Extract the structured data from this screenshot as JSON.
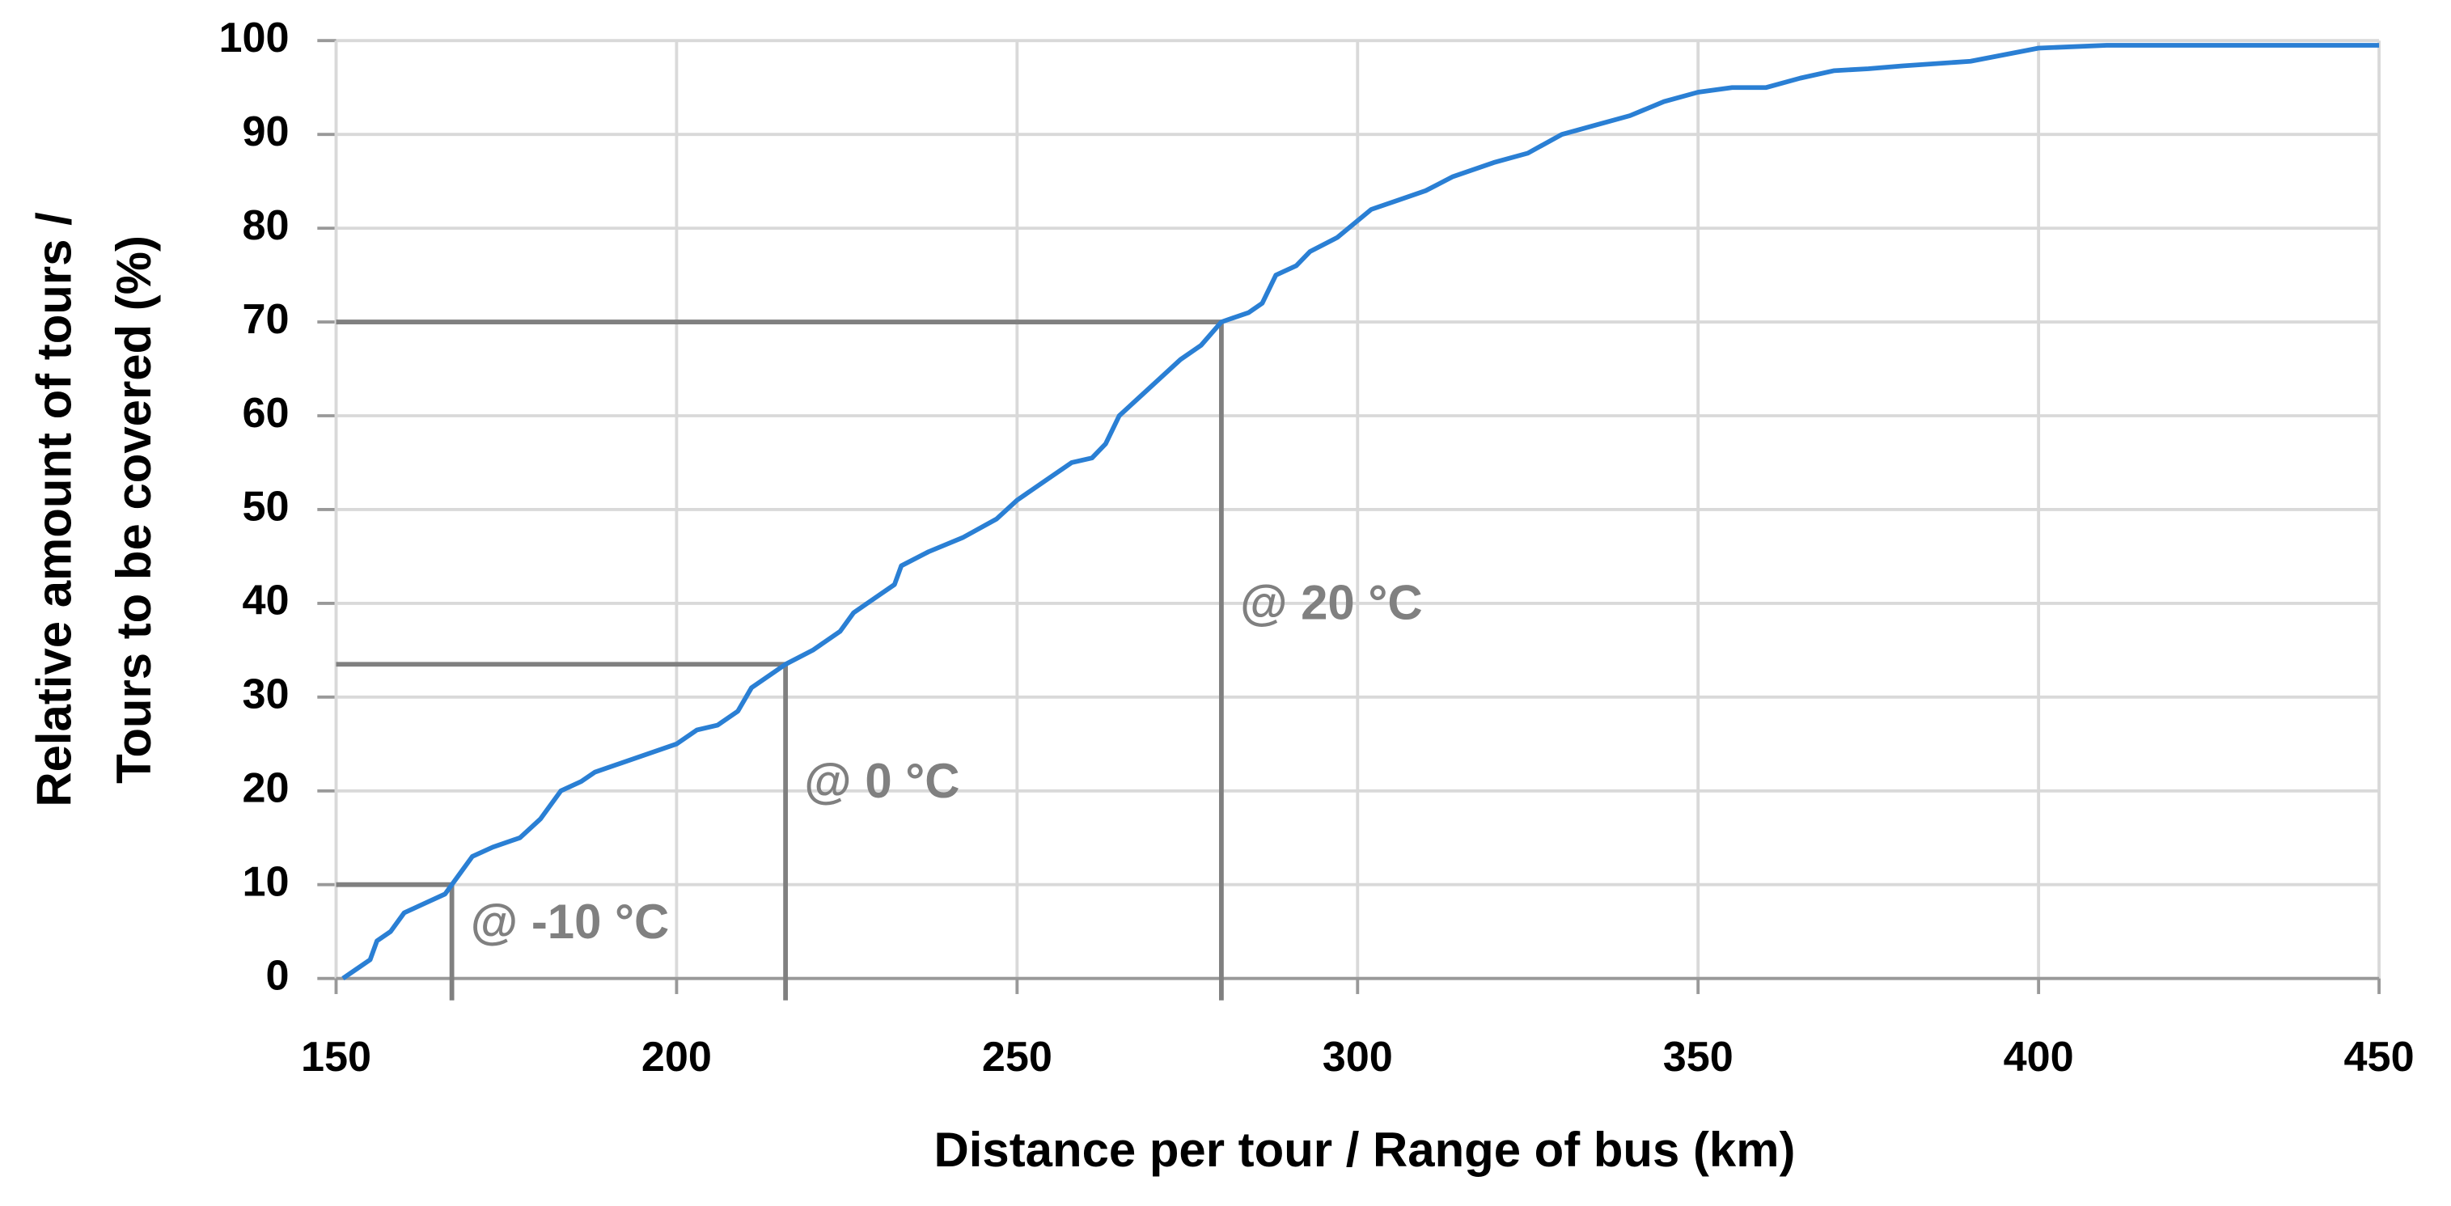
{
  "chart_data": {
    "type": "line",
    "ylabel": [
      "Relative amount of tours /",
      "Tours to be covered (%)"
    ],
    "xlabel": "Distance per tour / Range of bus (km)",
    "x": [
      151,
      153,
      155,
      156,
      158,
      160,
      163,
      166,
      167,
      168,
      170,
      173,
      177,
      180,
      183,
      186,
      188,
      192,
      196,
      200,
      203,
      206,
      209,
      211,
      214,
      216,
      220,
      224,
      226,
      230,
      232,
      233,
      237,
      242,
      247,
      250,
      254,
      258,
      261,
      263,
      265,
      268,
      271,
      274,
      277,
      280,
      284,
      286,
      288,
      291,
      293,
      297,
      302,
      306,
      310,
      314,
      320,
      325,
      330,
      335,
      340,
      345,
      350,
      355,
      360,
      365,
      370,
      375,
      380,
      390,
      395,
      400,
      410,
      450
    ],
    "values": [
      0,
      1,
      2,
      4,
      5,
      7,
      8,
      9,
      10,
      11,
      13,
      14,
      15,
      17,
      20,
      21,
      22,
      23,
      24,
      25,
      26.5,
      27,
      28.5,
      31,
      32.5,
      33.5,
      35,
      37,
      39,
      41,
      42,
      44,
      45.5,
      47,
      49,
      51,
      53,
      55,
      55.5,
      57,
      60,
      62,
      64,
      66,
      67.5,
      70,
      71,
      72,
      75,
      76,
      77.5,
      79,
      82,
      83,
      84,
      85.5,
      87,
      88,
      90,
      91,
      92,
      93.5,
      94.5,
      95,
      95,
      96,
      96.8,
      97,
      97.3,
      97.8,
      98.5,
      99.2,
      99.5,
      99.5
    ],
    "color": "#2a7fd4",
    "reference_lines": [
      {
        "label": "@ -10 °C",
        "x": 167,
        "y": 10
      },
      {
        "label": "@ 0 °C",
        "x": 216,
        "y": 33.5
      },
      {
        "label": "@ 20 °C",
        "x": 280,
        "y": 70
      }
    ],
    "reference_color": "#808080",
    "xlim": [
      150,
      450
    ],
    "xticks": [
      150,
      200,
      250,
      300,
      350,
      400,
      450
    ],
    "ylim": [
      0,
      100
    ],
    "yticks": [
      0,
      10,
      20,
      30,
      40,
      50,
      60,
      70,
      80,
      90,
      100
    ],
    "grid": true
  }
}
